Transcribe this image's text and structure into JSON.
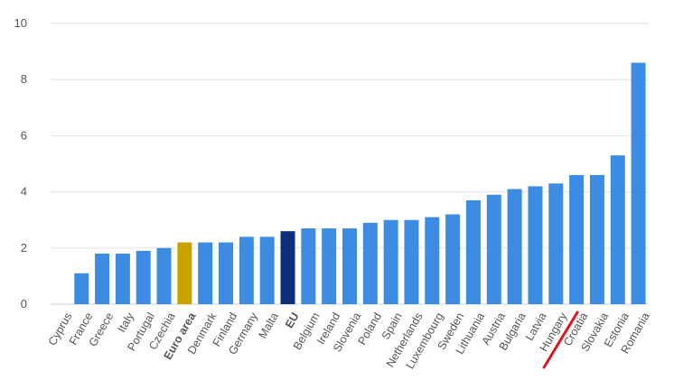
{
  "chart_data": {
    "type": "bar",
    "title": "",
    "xlabel": "",
    "ylabel": "",
    "ylim": [
      0,
      10
    ],
    "yticks": [
      0,
      2,
      4,
      6,
      8,
      10
    ],
    "grid": true,
    "categories": [
      "Cyprus",
      "France",
      "Greece",
      "Italy",
      "Portugal",
      "Czechia",
      "Euro area",
      "Denmark",
      "Finland",
      "Germany",
      "Malta",
      "EU",
      "Belgium",
      "Ireland",
      "Slovenia",
      "Poland",
      "Spain",
      "Netherlands",
      "Luxembourg",
      "Sweden",
      "Lithuania",
      "Austria",
      "Bulgaria",
      "Latvia",
      "Hungary",
      "Croatia",
      "Slovakia",
      "Estonia",
      "Romania"
    ],
    "values": [
      0.0,
      1.1,
      1.8,
      1.8,
      1.9,
      2.0,
      2.2,
      2.2,
      2.2,
      2.4,
      2.4,
      2.6,
      2.7,
      2.7,
      2.7,
      2.9,
      3.0,
      3.0,
      3.1,
      3.2,
      3.7,
      3.9,
      4.1,
      4.2,
      4.3,
      4.6,
      4.6,
      5.3,
      8.6
    ],
    "highlight": {
      "Euro area": "#c9a200",
      "EU": "#0b2f7a"
    },
    "bold_labels": [
      "Euro area",
      "EU"
    ],
    "annotation": {
      "type": "underline-stroke",
      "target": "Croatia",
      "color": "#e0141e"
    }
  },
  "colors": {
    "bar": "#3b8ce2",
    "grid": "#e2e2e2",
    "axis_text": "#555555"
  }
}
